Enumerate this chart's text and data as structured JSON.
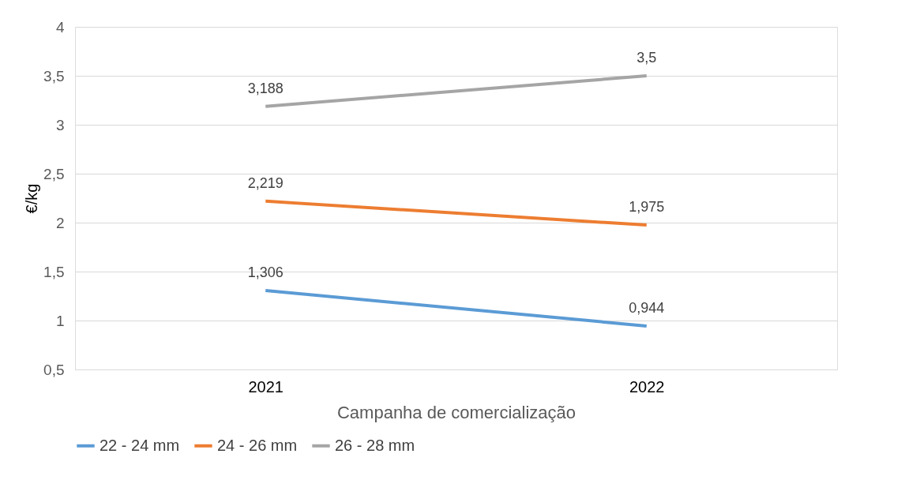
{
  "chart_data": {
    "type": "line",
    "xlabel": "Campanha de comercialização",
    "ylabel": "€/kg",
    "categories": [
      "2021",
      "2022"
    ],
    "series": [
      {
        "name": "22 - 24 mm",
        "color": "#5b9bd5",
        "values": [
          1.306,
          0.944
        ],
        "value_labels": [
          "1,306",
          "0,944"
        ]
      },
      {
        "name": "24 - 26 mm",
        "color": "#ed7d31",
        "values": [
          2.219,
          1.975
        ],
        "value_labels": [
          "2,219",
          "1,975"
        ]
      },
      {
        "name": "26 - 28 mm",
        "color": "#a5a5a5",
        "values": [
          3.188,
          3.5
        ],
        "value_labels": [
          "3,188",
          "3,5"
        ]
      }
    ],
    "ylim": [
      0.5,
      4
    ],
    "yticks": [
      {
        "value": 0.5,
        "label": "0,5"
      },
      1,
      {
        "value": 1.5,
        "label": "1,5"
      },
      2,
      {
        "value": 2.5,
        "label": "2,5"
      },
      3,
      {
        "value": 3.5,
        "label": "3,5"
      },
      4
    ],
    "grid": "y",
    "legend": "bottom",
    "marker": "none",
    "line_style": "solid"
  }
}
